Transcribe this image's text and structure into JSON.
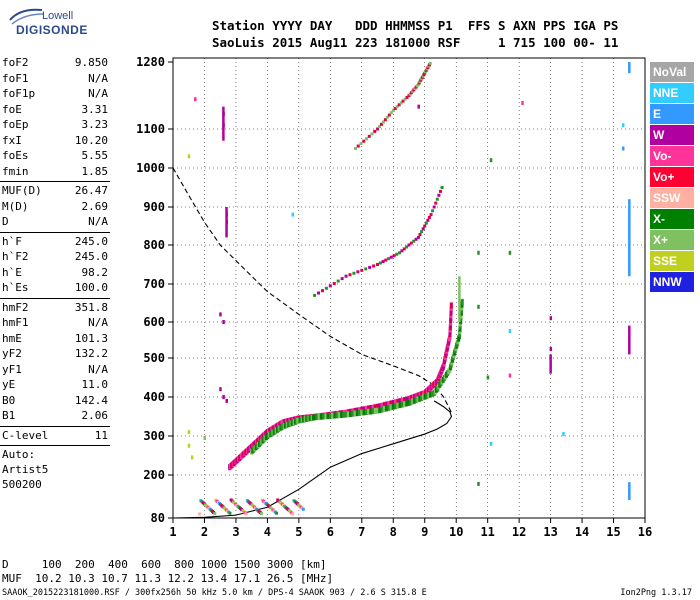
{
  "header": {
    "line1": "Station YYYY DAY   DDD HHMMSS P1  FFS S AXN PPS IGA PS",
    "line2": "SaoLuis 2015 Aug11 223 181000 RSF     1 715 100 00- 11"
  },
  "logo": {
    "line1": "Lowell",
    "line2": "DIGISONDE"
  },
  "params_group1": [
    {
      "key": "foF2",
      "value": "9.850"
    },
    {
      "key": "foF1",
      "value": "N/A"
    },
    {
      "key": "foF1p",
      "value": "N/A"
    },
    {
      "key": "foE",
      "value": "3.31"
    },
    {
      "key": "foEp",
      "value": "3.23"
    },
    {
      "key": "fxI",
      "value": "10.20"
    },
    {
      "key": "foEs",
      "value": "5.55"
    },
    {
      "key": "fmin",
      "value": "1.85"
    }
  ],
  "params_group2": [
    {
      "key": "MUF(D)",
      "value": "26.47"
    },
    {
      "key": "M(D)",
      "value": "2.69"
    },
    {
      "key": "D",
      "value": "N/A"
    }
  ],
  "params_group3": [
    {
      "key": "h`F",
      "value": "245.0"
    },
    {
      "key": "h`F2",
      "value": "245.0"
    },
    {
      "key": "h`E",
      "value": "98.2"
    },
    {
      "key": "h`Es",
      "value": "100.0"
    }
  ],
  "params_group4": [
    {
      "key": "hmF2",
      "value": "351.8"
    },
    {
      "key": "hmF1",
      "value": "N/A"
    },
    {
      "key": "hmE",
      "value": "101.3"
    },
    {
      "key": "yF2",
      "value": "132.2"
    },
    {
      "key": "yF1",
      "value": "N/A"
    },
    {
      "key": "yE",
      "value": "11.0"
    },
    {
      "key": "B0",
      "value": "142.4"
    },
    {
      "key": "B1",
      "value": "2.06"
    }
  ],
  "c_level": {
    "key": "C-level",
    "value": "11"
  },
  "autoscale": {
    "line1": "Auto:",
    "line2": "Artist5",
    "line3": "500200"
  },
  "footer": {
    "line1": "D     100  200  400  600  800 1000 1500 3000 [km]",
    "line2": "MUF  10.2 10.3 10.7 11.3 12.2 13.4 17.1 26.5 [MHz]"
  },
  "credit": "SAAOK_2015223181000.RSF / 300fx256h 50 kHz 5.0 km / DPS-4 SAAOK 903 / 2.6 S 315.8 E",
  "version": "Ion2Png 1.3.17",
  "legend": [
    {
      "label": "NoVal",
      "color": "#a6a6a6"
    },
    {
      "label": "NNE",
      "color": "#33ccff"
    },
    {
      "label": "E",
      "color": "#3399ff"
    },
    {
      "label": "W",
      "color": "#b000a0"
    },
    {
      "label": "Vo-",
      "color": "#ff3399"
    },
    {
      "label": "Vo+",
      "color": "#ff0033"
    },
    {
      "label": "SSW",
      "color": "#ffb0a0"
    },
    {
      "label": "X-",
      "color": "#008000"
    },
    {
      "label": "X+",
      "color": "#7fc060"
    },
    {
      "label": "SSE",
      "color": "#c0d020"
    },
    {
      "label": "NNW",
      "color": "#2020e0"
    }
  ],
  "chart_data": {
    "type": "scatter",
    "x_ticks": [
      "1",
      "2",
      "3",
      "4",
      "5",
      "6",
      "7",
      "8",
      "9",
      "10",
      "11",
      "12",
      "13",
      "14",
      "15",
      "16"
    ],
    "y_ticks": [
      "80",
      "200",
      "300",
      "400",
      "500",
      "600",
      "700",
      "800",
      "900",
      "1000",
      "1100",
      "1280"
    ],
    "xlim": [
      1,
      16
    ],
    "x_unit": "MHz",
    "y_unit": "km",
    "series": [
      {
        "style": "solid",
        "x": [
          1.0,
          2.0,
          3.0,
          4.0,
          5.0,
          6.0,
          7.0,
          8.0,
          8.6,
          9.0,
          9.4,
          9.7,
          9.85,
          9.8,
          9.6,
          9.3
        ],
        "y": [
          80,
          82,
          88,
          110,
          160,
          220,
          255,
          280,
          295,
          305,
          318,
          332,
          350,
          362,
          375,
          390
        ]
      },
      {
        "style": "dashed",
        "x": [
          1.0,
          1.5,
          2.0,
          2.5,
          3.0,
          3.5,
          4.0,
          5.0,
          6.0,
          7.0,
          8.0,
          8.8,
          9.3,
          9.6,
          9.85
        ],
        "y": [
          1000,
          930,
          860,
          800,
          760,
          720,
          680,
          620,
          560,
          510,
          480,
          455,
          430,
          400,
          360
        ]
      }
    ],
    "traces": [
      {
        "name": "F2 O-trace",
        "x": [
          2.8,
          3.2,
          3.6,
          4.0,
          4.5,
          5.0,
          5.6,
          6.5,
          7.5,
          8.5,
          9.0,
          9.4,
          9.6,
          9.8,
          9.85
        ],
        "y": [
          220,
          250,
          280,
          310,
          335,
          345,
          350,
          360,
          375,
          395,
          410,
          440,
          480,
          560,
          650
        ]
      },
      {
        "name": "F2 X-trace",
        "x": [
          3.5,
          4.0,
          4.5,
          5.0,
          5.5,
          6.5,
          7.5,
          8.5,
          9.3,
          9.8,
          10.1,
          10.2
        ],
        "y": [
          260,
          300,
          325,
          340,
          348,
          355,
          365,
          385,
          410,
          470,
          560,
          660
        ]
      },
      {
        "name": "multi-hop",
        "x": [
          5.5,
          6.5,
          7.5,
          8.2,
          8.8,
          9.2,
          9.6
        ],
        "y": [
          670,
          720,
          750,
          780,
          820,
          880,
          960
        ]
      },
      {
        "name": "second multi-hop",
        "x": [
          6.8,
          7.5,
          8.0,
          8.5,
          8.8,
          9.0,
          9.2
        ],
        "y": [
          1050,
          1100,
          1150,
          1190,
          1220,
          1250,
          1280
        ]
      }
    ]
  }
}
